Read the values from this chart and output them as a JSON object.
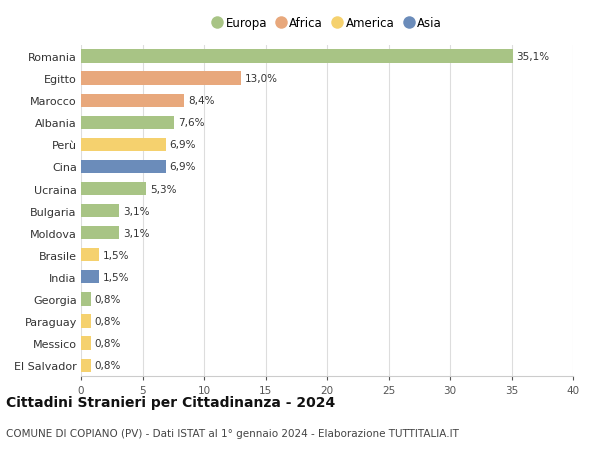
{
  "countries": [
    "Romania",
    "Egitto",
    "Marocco",
    "Albania",
    "Perù",
    "Cina",
    "Ucraina",
    "Bulgaria",
    "Moldova",
    "Brasile",
    "India",
    "Georgia",
    "Paraguay",
    "Messico",
    "El Salvador"
  ],
  "values": [
    35.1,
    13.0,
    8.4,
    7.6,
    6.9,
    6.9,
    5.3,
    3.1,
    3.1,
    1.5,
    1.5,
    0.8,
    0.8,
    0.8,
    0.8
  ],
  "labels": [
    "35,1%",
    "13,0%",
    "8,4%",
    "7,6%",
    "6,9%",
    "6,9%",
    "5,3%",
    "3,1%",
    "3,1%",
    "1,5%",
    "1,5%",
    "0,8%",
    "0,8%",
    "0,8%",
    "0,8%"
  ],
  "continents": [
    "Europa",
    "Africa",
    "Africa",
    "Europa",
    "America",
    "Asia",
    "Europa",
    "Europa",
    "Europa",
    "America",
    "Asia",
    "Europa",
    "America",
    "America",
    "America"
  ],
  "colors": {
    "Europa": "#a8c485",
    "Africa": "#e8a87c",
    "America": "#f5d16e",
    "Asia": "#6b8cba"
  },
  "legend_order": [
    "Europa",
    "Africa",
    "America",
    "Asia"
  ],
  "title": "Cittadini Stranieri per Cittadinanza - 2024",
  "subtitle": "COMUNE DI COPIANO (PV) - Dati ISTAT al 1° gennaio 2024 - Elaborazione TUTTITALIA.IT",
  "xlim": [
    0,
    40
  ],
  "xticks": [
    0,
    5,
    10,
    15,
    20,
    25,
    30,
    35,
    40
  ],
  "background_color": "#ffffff",
  "grid_color": "#dddddd",
  "title_fontsize": 10,
  "subtitle_fontsize": 7.5,
  "bar_height": 0.6,
  "label_fontsize": 7.5,
  "ytick_fontsize": 8,
  "xtick_fontsize": 7.5
}
